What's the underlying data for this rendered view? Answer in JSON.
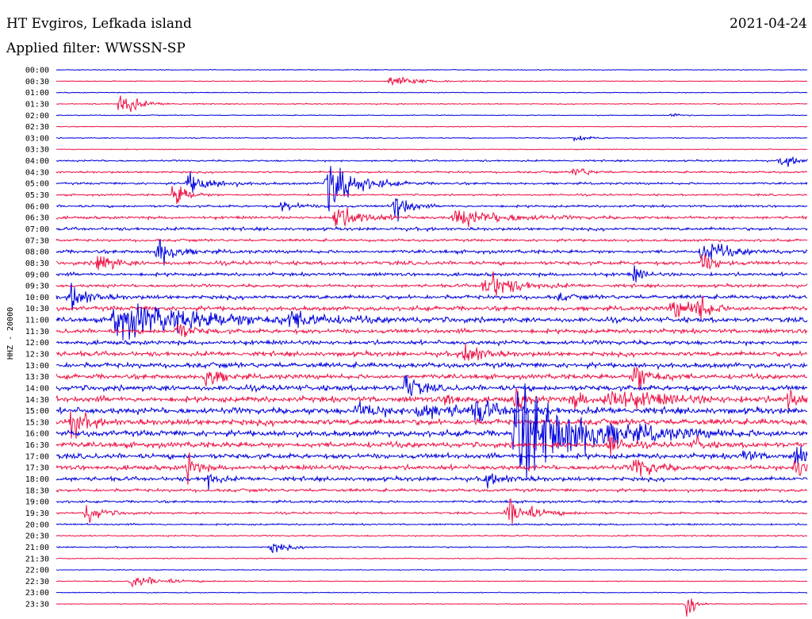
{
  "header": {
    "station": "HT Evgiros, Lefkada island",
    "filter": "Applied filter: WWSSN-SP",
    "date": "2021-04-24"
  },
  "chart_data": {
    "type": "helicorder",
    "ylabel": "HHZ - 20000",
    "colors": {
      "odd": "#0000dd",
      "even": "#ee1144"
    },
    "rows": [
      "00:00",
      "00:30",
      "01:00",
      "01:30",
      "02:00",
      "02:30",
      "03:00",
      "03:30",
      "04:00",
      "04:30",
      "05:00",
      "05:30",
      "06:00",
      "06:30",
      "07:00",
      "07:30",
      "08:00",
      "08:30",
      "09:00",
      "09:30",
      "10:00",
      "10:30",
      "11:00",
      "11:30",
      "12:00",
      "12:30",
      "13:00",
      "13:30",
      "14:00",
      "14:30",
      "15:00",
      "15:30",
      "16:00",
      "16:30",
      "17:00",
      "17:30",
      "18:00",
      "18:30",
      "19:00",
      "19:30",
      "20:00",
      "20:30",
      "21:00",
      "21:30",
      "22:00",
      "22:30",
      "23:00",
      "23:30"
    ],
    "noise": [
      0.5,
      0.5,
      0.5,
      0.6,
      0.5,
      0.5,
      0.6,
      0.5,
      1.0,
      1.2,
      1.3,
      1.1,
      1.4,
      1.6,
      1.8,
      1.5,
      2.0,
      2.2,
      2.0,
      1.8,
      2.4,
      2.6,
      2.8,
      2.6,
      2.5,
      2.7,
      3.0,
      2.8,
      3.2,
      3.4,
      3.6,
      3.6,
      3.5,
      3.2,
      3.0,
      2.8,
      2.4,
      1.8,
      1.4,
      1.2,
      1.0,
      0.8,
      0.8,
      0.6,
      0.5,
      0.5,
      0.5,
      0.4
    ],
    "events": [
      {
        "row": 1,
        "t": 0.445,
        "amp": 9,
        "dur": 0.03
      },
      {
        "row": 3,
        "t": 0.085,
        "amp": 18,
        "dur": 0.02
      },
      {
        "row": 4,
        "t": 0.82,
        "amp": 3,
        "dur": 0.01
      },
      {
        "row": 6,
        "t": 0.69,
        "amp": 5,
        "dur": 0.015
      },
      {
        "row": 8,
        "t": 0.965,
        "amp": 7,
        "dur": 0.03
      },
      {
        "row": 9,
        "t": 0.69,
        "amp": 8,
        "dur": 0.015
      },
      {
        "row": 10,
        "t": 0.36,
        "amp": 42,
        "dur": 0.03
      },
      {
        "row": 10,
        "t": 0.175,
        "amp": 14,
        "dur": 0.03
      },
      {
        "row": 11,
        "t": 0.155,
        "amp": 24,
        "dur": 0.015
      },
      {
        "row": 12,
        "t": 0.3,
        "amp": 8,
        "dur": 0.02
      },
      {
        "row": 12,
        "t": 0.45,
        "amp": 24,
        "dur": 0.015
      },
      {
        "row": 13,
        "t": 0.37,
        "amp": 20,
        "dur": 0.03
      },
      {
        "row": 13,
        "t": 0.53,
        "amp": 12,
        "dur": 0.06
      },
      {
        "row": 16,
        "t": 0.135,
        "amp": 22,
        "dur": 0.02
      },
      {
        "row": 16,
        "t": 0.86,
        "amp": 16,
        "dur": 0.03
      },
      {
        "row": 17,
        "t": 0.055,
        "amp": 20,
        "dur": 0.015
      },
      {
        "row": 17,
        "t": 0.86,
        "amp": 16,
        "dur": 0.015
      },
      {
        "row": 18,
        "t": 0.77,
        "amp": 12,
        "dur": 0.01
      },
      {
        "row": 19,
        "t": 0.57,
        "amp": 24,
        "dur": 0.03
      },
      {
        "row": 20,
        "t": 0.02,
        "amp": 20,
        "dur": 0.02
      },
      {
        "row": 20,
        "t": 0.67,
        "amp": 6,
        "dur": 0.01
      },
      {
        "row": 21,
        "t": 0.82,
        "amp": 14,
        "dur": 0.03
      },
      {
        "row": 21,
        "t": 0.855,
        "amp": 22,
        "dur": 0.01
      },
      {
        "row": 22,
        "t": 0.075,
        "amp": 24,
        "dur": 0.12
      },
      {
        "row": 22,
        "t": 0.31,
        "amp": 10,
        "dur": 0.03
      },
      {
        "row": 23,
        "t": 0.16,
        "amp": 16,
        "dur": 0.015
      },
      {
        "row": 25,
        "t": 0.545,
        "amp": 18,
        "dur": 0.02
      },
      {
        "row": 27,
        "t": 0.2,
        "amp": 20,
        "dur": 0.015
      },
      {
        "row": 27,
        "t": 0.77,
        "amp": 24,
        "dur": 0.02
      },
      {
        "row": 28,
        "t": 0.465,
        "amp": 20,
        "dur": 0.015
      },
      {
        "row": 29,
        "t": 0.52,
        "amp": 16,
        "dur": 0.01
      },
      {
        "row": 29,
        "t": 0.61,
        "amp": 14,
        "dur": 0.015
      },
      {
        "row": 29,
        "t": 0.69,
        "amp": 14,
        "dur": 0.01
      },
      {
        "row": 29,
        "t": 0.73,
        "amp": 16,
        "dur": 0.06
      },
      {
        "row": 29,
        "t": 0.975,
        "amp": 20,
        "dur": 0.01
      },
      {
        "row": 30,
        "t": 0.4,
        "amp": 10,
        "dur": 0.03
      },
      {
        "row": 30,
        "t": 0.48,
        "amp": 8,
        "dur": 0.08
      },
      {
        "row": 30,
        "t": 0.56,
        "amp": 18,
        "dur": 0.015
      },
      {
        "row": 31,
        "t": 0.02,
        "amp": 22,
        "dur": 0.015
      },
      {
        "row": 32,
        "t": 0.61,
        "amp": 70,
        "dur": 0.08
      },
      {
        "row": 33,
        "t": 0.735,
        "amp": 16,
        "dur": 0.015
      },
      {
        "row": 33,
        "t": 0.85,
        "amp": 10,
        "dur": 0.01
      },
      {
        "row": 34,
        "t": 0.915,
        "amp": 10,
        "dur": 0.015
      },
      {
        "row": 34,
        "t": 0.985,
        "amp": 14,
        "dur": 0.015
      },
      {
        "row": 35,
        "t": 0.175,
        "amp": 20,
        "dur": 0.01
      },
      {
        "row": 35,
        "t": 0.77,
        "amp": 18,
        "dur": 0.02
      },
      {
        "row": 35,
        "t": 0.985,
        "amp": 20,
        "dur": 0.015
      },
      {
        "row": 36,
        "t": 0.2,
        "amp": 14,
        "dur": 0.01
      },
      {
        "row": 36,
        "t": 0.57,
        "amp": 8,
        "dur": 0.03
      },
      {
        "row": 39,
        "t": 0.04,
        "amp": 14,
        "dur": 0.02
      },
      {
        "row": 39,
        "t": 0.6,
        "amp": 20,
        "dur": 0.03
      },
      {
        "row": 42,
        "t": 0.285,
        "amp": 8,
        "dur": 0.02
      },
      {
        "row": 45,
        "t": 0.1,
        "amp": 8,
        "dur": 0.04
      },
      {
        "row": 47,
        "t": 0.84,
        "amp": 18,
        "dur": 0.01
      }
    ]
  }
}
